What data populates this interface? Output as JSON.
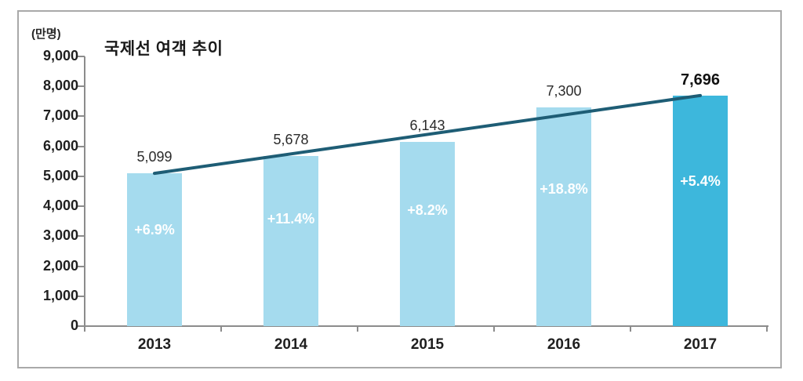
{
  "chart_data": {
    "type": "bar",
    "title": "국제선 여객 추이",
    "unit_label": "(만명)",
    "categories": [
      "2013",
      "2014",
      "2015",
      "2016",
      "2017"
    ],
    "values": [
      5099,
      5678,
      6143,
      7300,
      7696
    ],
    "value_labels": [
      "5,099",
      "5,678",
      "6,143",
      "7,300",
      "7,696"
    ],
    "growth_labels": [
      "+6.9%",
      "+11.4%",
      "+8.2%",
      "+18.8%",
      "+5.4%"
    ],
    "highlight_index": 4,
    "y_tick_values": [
      9000,
      8000,
      7000,
      6000,
      5000,
      4000,
      3000,
      2000,
      1000,
      0
    ],
    "y_tick_labels": [
      "9,000",
      "8,000",
      "7,000",
      "6,000",
      "5,000",
      "4,000",
      "3,000",
      "2,000",
      "1,000",
      "0"
    ],
    "ylim": [
      0,
      9000
    ],
    "grid": false,
    "legend": "none",
    "trend_line": {
      "from_value": 5099,
      "to_value": 7696
    },
    "colors": {
      "bar_default": "#a5dbee",
      "bar_highlight": "#3db7dc",
      "trend_line": "#1e5d75",
      "axis": "#8c8c8c",
      "text": "#1f1f1f",
      "growth_text": "#ffffff",
      "frame_border": "#a9a9a9"
    }
  }
}
